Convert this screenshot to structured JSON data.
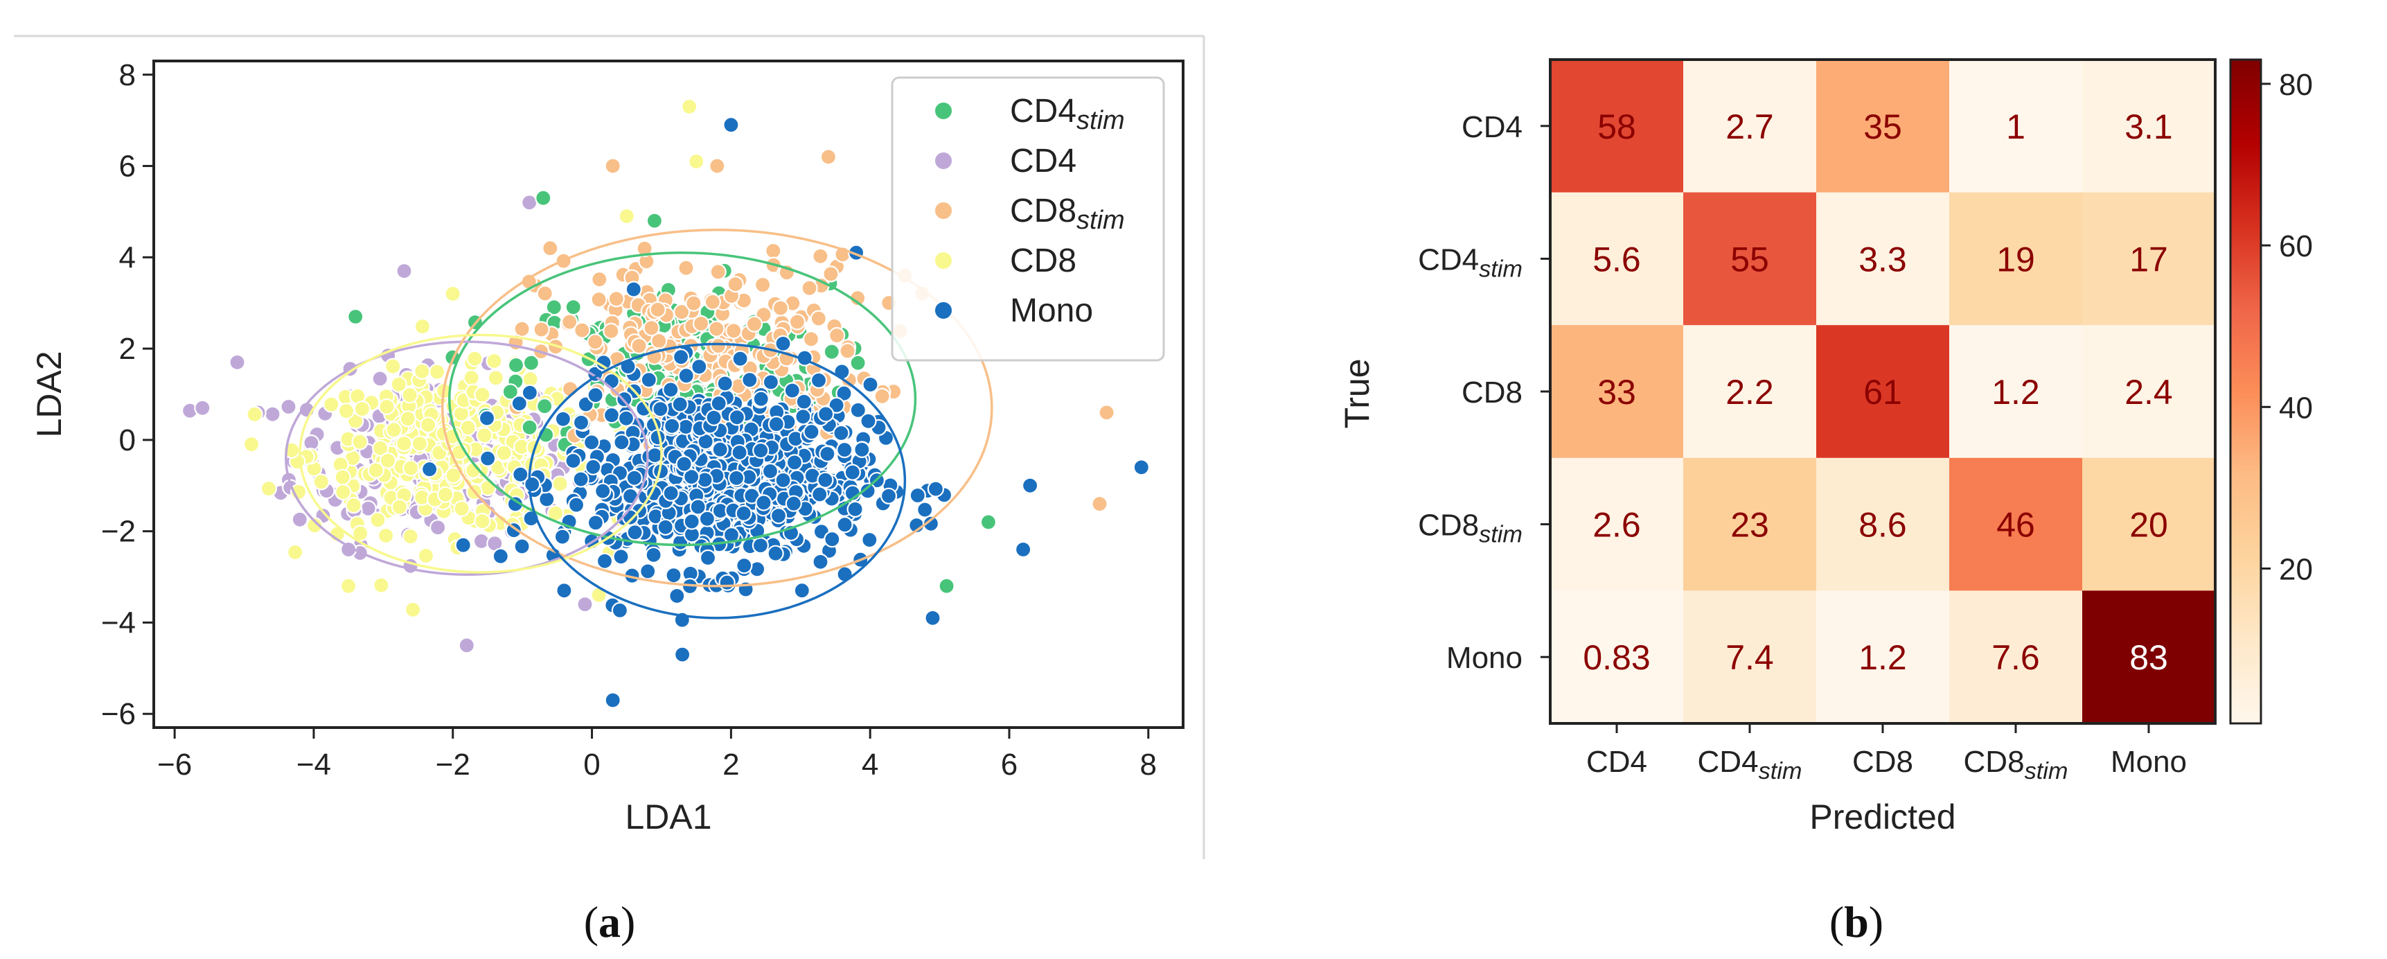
{
  "chart_data": [
    {
      "type": "scatter",
      "panel_label": "a",
      "xlabel": "LDA1",
      "ylabel": "LDA2",
      "xlim": [
        -6.3,
        8.5
      ],
      "ylim": [
        -6.3,
        8.3
      ],
      "xticks": [
        -6,
        -4,
        -2,
        0,
        2,
        4,
        6,
        8
      ],
      "yticks": [
        -6,
        -4,
        -2,
        0,
        2,
        4,
        6,
        8
      ],
      "xtick_labels": [
        "−6",
        "−4",
        "−2",
        "0",
        "2",
        "4",
        "6",
        "8"
      ],
      "ytick_labels": [
        "−6",
        "−4",
        "−2",
        "0",
        "2",
        "4",
        "6",
        "8"
      ],
      "legend_position": "top-right",
      "series": [
        {
          "name": "CD4",
          "sub": "stim",
          "color": "#48c47a",
          "cluster": {
            "cx": 1.2,
            "cy": 1.6,
            "sx": 1.1,
            "sy": 0.9,
            "n": 220
          },
          "ellipse": {
            "cx": 1.3,
            "cy": 0.9,
            "rx": 3.35,
            "ry": 3.2
          },
          "outliers": [
            [
              -3.4,
              2.7
            ],
            [
              -0.7,
              5.3
            ],
            [
              5.7,
              -1.8
            ],
            [
              5.1,
              -3.2
            ],
            [
              0.9,
              4.8
            ]
          ]
        },
        {
          "name": "CD4",
          "sub": "",
          "color": "#bfa8d8",
          "cluster": {
            "cx": -2.3,
            "cy": -0.4,
            "sx": 1.0,
            "sy": 0.9,
            "n": 220
          },
          "ellipse": {
            "cx": -1.8,
            "cy": -0.4,
            "rx": 2.6,
            "ry": 2.55
          },
          "outliers": [
            [
              -5.6,
              0.7
            ],
            [
              -5.1,
              1.7
            ],
            [
              -4.8,
              0.6
            ],
            [
              -2.7,
              3.7
            ],
            [
              -0.9,
              5.2
            ],
            [
              -1.8,
              -4.5
            ],
            [
              -0.1,
              -3.6
            ],
            [
              -3.5,
              -2.4
            ]
          ]
        },
        {
          "name": "CD8",
          "sub": "stim",
          "color": "#f8bf88",
          "cluster": {
            "cx": 1.6,
            "cy": 2.0,
            "sx": 1.2,
            "sy": 1.0,
            "n": 220
          },
          "ellipse": {
            "cx": 1.8,
            "cy": 0.7,
            "rx": 3.95,
            "ry": 3.9
          },
          "outliers": [
            [
              0.3,
              6.0
            ],
            [
              1.8,
              6.0
            ],
            [
              3.4,
              6.2
            ],
            [
              7.4,
              0.6
            ],
            [
              7.3,
              -1.4
            ],
            [
              4.5,
              3.6
            ],
            [
              -0.6,
              4.2
            ]
          ]
        },
        {
          "name": "CD8",
          "sub": "",
          "color": "#f8f88e",
          "cluster": {
            "cx": -2.0,
            "cy": -0.3,
            "sx": 1.0,
            "sy": 0.85,
            "n": 320
          },
          "ellipse": {
            "cx": -1.6,
            "cy": -0.3,
            "rx": 2.6,
            "ry": 2.6
          },
          "outliers": [
            [
              1.4,
              7.3
            ],
            [
              1.5,
              6.1
            ],
            [
              -3.5,
              -3.2
            ],
            [
              -2.0,
              3.2
            ],
            [
              0.5,
              4.9
            ],
            [
              0.1,
              -3.4
            ]
          ]
        },
        {
          "name": "Mono",
          "sub": "",
          "color": "#1a6fbf",
          "cluster": {
            "cx": 1.8,
            "cy": -0.8,
            "sx": 1.1,
            "sy": 1.0,
            "n": 700
          },
          "ellipse": {
            "cx": 1.8,
            "cy": -0.9,
            "rx": 2.7,
            "ry": 3.0
          },
          "outliers": [
            [
              2.0,
              6.9
            ],
            [
              3.8,
              4.1
            ],
            [
              7.9,
              -0.6
            ],
            [
              6.2,
              -2.4
            ],
            [
              4.9,
              -3.9
            ],
            [
              0.3,
              -5.7
            ],
            [
              1.3,
              -4.7
            ],
            [
              6.3,
              -1.0
            ],
            [
              -0.4,
              -3.3
            ],
            [
              0.6,
              3.3
            ]
          ]
        }
      ]
    },
    {
      "type": "heatmap",
      "panel_label": "b",
      "xlabel": "Predicted",
      "ylabel": "True",
      "row_labels": [
        {
          "text": "CD4",
          "sub": ""
        },
        {
          "text": "CD4",
          "sub": "stim"
        },
        {
          "text": "CD8",
          "sub": ""
        },
        {
          "text": "CD8",
          "sub": "stim"
        },
        {
          "text": "Mono",
          "sub": ""
        }
      ],
      "col_labels": [
        {
          "text": "CD4",
          "sub": ""
        },
        {
          "text": "CD4",
          "sub": "stim"
        },
        {
          "text": "CD8",
          "sub": ""
        },
        {
          "text": "CD8",
          "sub": "stim"
        },
        {
          "text": "Mono",
          "sub": ""
        }
      ],
      "values": [
        [
          58,
          2.7,
          35,
          1,
          3.1
        ],
        [
          5.6,
          55,
          3.3,
          19,
          17
        ],
        [
          33,
          2.2,
          61,
          1.2,
          2.4
        ],
        [
          2.6,
          23,
          8.6,
          46,
          20
        ],
        [
          0.83,
          7.4,
          1.2,
          7.6,
          83
        ]
      ],
      "value_labels": [
        [
          "58",
          "2.7",
          "35",
          "1",
          "3.1"
        ],
        [
          "5.6",
          "55",
          "3.3",
          "19",
          "17"
        ],
        [
          "33",
          "2.2",
          "61",
          "1.2",
          "2.4"
        ],
        [
          "2.6",
          "23",
          "8.6",
          "46",
          "20"
        ],
        [
          "0.83",
          "7.4",
          "1.2",
          "7.6",
          "83"
        ]
      ],
      "colormap": "OrRd",
      "text_color": "#8b0000",
      "colorbar": {
        "min": 0.83,
        "max": 83,
        "ticks": [
          20,
          40,
          60,
          80
        ],
        "tick_labels": [
          "20",
          "40",
          "60",
          "80"
        ]
      }
    }
  ],
  "captions": {
    "a": "a",
    "b": "b"
  }
}
